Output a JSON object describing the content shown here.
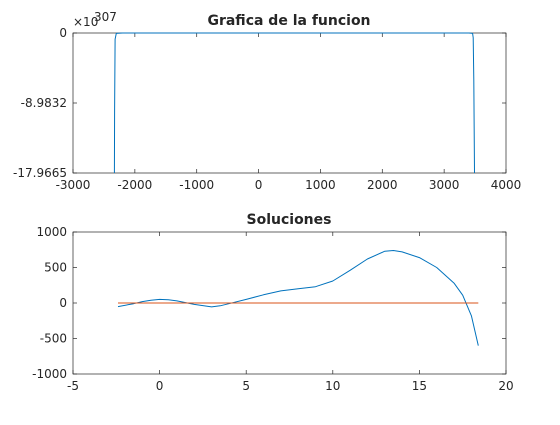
{
  "chart_data": [
    {
      "type": "line",
      "title": "Grafica de la funcion",
      "xlabel": "",
      "ylabel": "",
      "xlim": [
        -3000,
        4000
      ],
      "ylim": [
        -17.9665,
        0
      ],
      "exponent_label": "×10",
      "exponent": "307",
      "x_ticks": [
        -3000,
        -2000,
        -1000,
        0,
        1000,
        2000,
        3000,
        4000
      ],
      "x_tick_labels": [
        "-3000",
        "-2000",
        "-1000",
        "0",
        "1000",
        "2000",
        "3000",
        "4000"
      ],
      "y_ticks": [
        -17.9665,
        -8.9832,
        0
      ],
      "y_tick_labels": [
        "-17.9665",
        "-8.9832",
        "0"
      ],
      "grid": false,
      "series": [
        {
          "color": "#0072BD",
          "x": [
            -2330,
            -2328,
            -2320,
            -2300,
            -2200,
            -2000,
            -1000,
            0,
            1000,
            2000,
            3000,
            3400,
            3460,
            3470,
            3480,
            3490
          ],
          "y": [
            -17.9665,
            -10.0,
            -0.8,
            -0.05,
            0,
            0,
            0,
            0,
            0,
            0,
            0,
            0,
            -0.05,
            -0.6,
            -6.0,
            -17.9665
          ]
        }
      ]
    },
    {
      "type": "line",
      "title": "Soluciones",
      "xlabel": "",
      "ylabel": "",
      "xlim": [
        -5,
        20
      ],
      "ylim": [
        -1000,
        1000
      ],
      "x_ticks": [
        -5,
        0,
        5,
        10,
        15,
        20
      ],
      "x_tick_labels": [
        "-5",
        "0",
        "5",
        "10",
        "15",
        "20"
      ],
      "y_ticks": [
        -1000,
        -500,
        0,
        500,
        1000
      ],
      "y_tick_labels": [
        "-1000",
        "-500",
        "0",
        "500",
        "1000"
      ],
      "grid": false,
      "series": [
        {
          "color": "#0072BD",
          "x": [
            -2.4,
            -1.5,
            -1,
            -0.5,
            0,
            0.5,
            1,
            2,
            3,
            3.5,
            4,
            5,
            6,
            7,
            8,
            9,
            10,
            11,
            12,
            13,
            13.5,
            14,
            15,
            16,
            17,
            17.5,
            18,
            18.4
          ],
          "y": [
            -50,
            -10,
            20,
            40,
            50,
            45,
            30,
            -20,
            -55,
            -40,
            -10,
            50,
            115,
            170,
            200,
            230,
            310,
            460,
            620,
            730,
            740,
            720,
            640,
            500,
            280,
            110,
            -180,
            -600
          ]
        },
        {
          "color": "#D95319",
          "x": [
            -2.4,
            18.4
          ],
          "y": [
            0,
            0
          ]
        }
      ]
    }
  ]
}
